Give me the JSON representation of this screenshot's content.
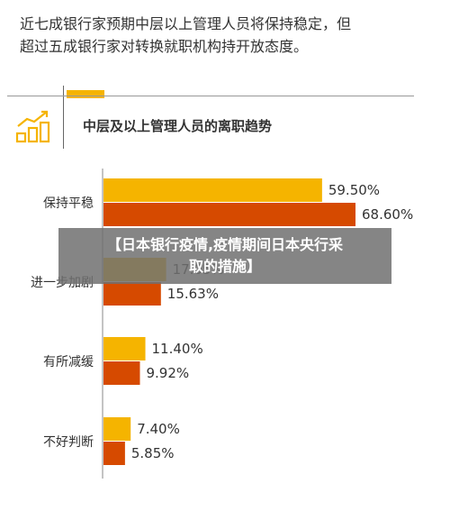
{
  "intro": {
    "line1": "近七成银行家预期中层以上管理人员将保持稳定，但",
    "line2": "超过五成银行家对转换就职机构持开放态度。"
  },
  "banner": {
    "line1": "【日本银行疫情,疫情期间日本央行采",
    "line2": "取的措施】"
  },
  "colors": {
    "series_a": "#f5b400",
    "series_b": "#d64a00",
    "logo": "#f5b400"
  },
  "icons": {
    "logo": "bar-chart-growth-icon"
  },
  "chart_data": {
    "type": "bar",
    "orientation": "horizontal",
    "title": "中层及以上管理人员的离职趋势",
    "categories": [
      "保持平稳",
      "进一步加剧",
      "有所减缓",
      "不好判断"
    ],
    "series": [
      {
        "values": [
          59.5,
          17.05,
          11.4,
          7.4
        ],
        "labels": [
          "59.50%",
          "17.05%",
          "11.40%",
          "7.40%"
        ]
      },
      {
        "values": [
          68.6,
          15.63,
          9.92,
          5.85
        ],
        "labels": [
          "68.60%",
          "15.63%",
          "9.92%",
          "5.85%"
        ]
      }
    ],
    "xlim": [
      0,
      68.6
    ],
    "grid": false,
    "legend": "none"
  }
}
